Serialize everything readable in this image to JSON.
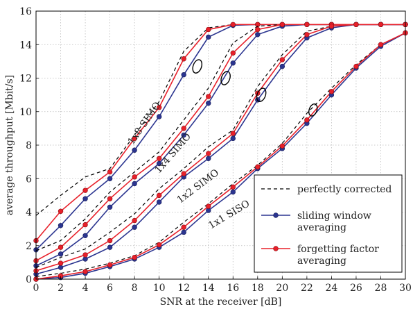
{
  "chart_data": {
    "type": "line",
    "title": "",
    "xlabel": "SNR at the receiver [dB]",
    "ylabel": "average throughput [Mbit/s]",
    "xlim": [
      0,
      30
    ],
    "ylim": [
      0,
      16
    ],
    "xticks": [
      0,
      2,
      4,
      6,
      8,
      10,
      12,
      14,
      16,
      18,
      20,
      22,
      24,
      26,
      28,
      30
    ],
    "yticks": [
      0,
      2,
      4,
      6,
      8,
      10,
      12,
      14,
      16
    ],
    "grid": true,
    "legend_position": "bottom-right",
    "legend": [
      {
        "label": "perfectly corrected",
        "style": "dashed",
        "color": "#000000",
        "marker": "none"
      },
      {
        "label": "sliding window averaging",
        "lines": [
          "sliding window",
          "averaging"
        ],
        "style": "solid",
        "color": "#2b3590",
        "marker": "circle"
      },
      {
        "label": "forgetting factor averaging",
        "lines": [
          "forgetting factor",
          "averaging"
        ],
        "style": "solid",
        "color": "#e8202a",
        "marker": "circle"
      }
    ],
    "x": [
      0,
      2,
      4,
      6,
      8,
      10,
      12,
      14,
      16,
      18,
      20,
      22,
      24,
      26,
      28,
      30
    ],
    "groups": [
      {
        "label": "1x8 SIMO",
        "perfect": [
          3.8,
          5.0,
          6.1,
          6.6,
          8.6,
          10.6,
          13.6,
          15.0,
          15.2,
          15.2,
          15.2,
          15.2,
          15.2,
          15.2,
          15.2,
          15.2
        ],
        "sliding": [
          1.75,
          3.2,
          4.8,
          6.0,
          7.7,
          9.7,
          12.2,
          14.45,
          15.15,
          15.2,
          15.2,
          15.2,
          15.2,
          15.2,
          15.2,
          15.2
        ],
        "forgetting": [
          2.3,
          4.05,
          5.3,
          6.4,
          8.4,
          10.25,
          13.15,
          14.9,
          15.2,
          15.2,
          15.2,
          15.2,
          15.2,
          15.2,
          15.2,
          15.2
        ]
      },
      {
        "label": "1x4 SIMO",
        "perfect": [
          1.7,
          2.3,
          3.6,
          5.2,
          6.4,
          7.6,
          9.5,
          11.4,
          14.1,
          15.1,
          15.2,
          15.2,
          15.2,
          15.2,
          15.2,
          15.2
        ],
        "sliding": [
          0.8,
          1.5,
          2.6,
          4.3,
          5.7,
          6.9,
          8.6,
          10.5,
          12.9,
          14.6,
          15.1,
          15.2,
          15.2,
          15.2,
          15.2,
          15.2
        ],
        "forgetting": [
          1.1,
          1.9,
          3.25,
          4.8,
          6.1,
          7.2,
          9.0,
          10.9,
          13.5,
          14.9,
          15.2,
          15.2,
          15.2,
          15.2,
          15.2,
          15.2
        ]
      },
      {
        "label": "1x2 SIMO",
        "perfect": [
          0.7,
          1.3,
          1.8,
          2.8,
          3.9,
          5.4,
          6.6,
          7.9,
          8.9,
          11.5,
          13.4,
          14.8,
          15.1,
          15.2,
          15.2,
          15.2
        ],
        "sliding": [
          0.3,
          0.7,
          1.2,
          1.9,
          3.1,
          4.6,
          6.1,
          7.2,
          8.4,
          10.7,
          12.7,
          14.4,
          15.0,
          15.2,
          15.2,
          15.2
        ],
        "forgetting": [
          0.5,
          0.95,
          1.45,
          2.3,
          3.5,
          5.0,
          6.3,
          7.5,
          8.7,
          11.1,
          13.1,
          14.6,
          15.1,
          15.2,
          15.2,
          15.2
        ]
      },
      {
        "label": "1x1 SISO",
        "perfect": [
          0.15,
          0.35,
          0.6,
          0.95,
          1.4,
          2.2,
          3.4,
          4.5,
          5.7,
          6.8,
          8.1,
          9.9,
          11.4,
          12.8,
          14.0,
          14.7
        ],
        "sliding": [
          0.0,
          0.1,
          0.35,
          0.75,
          1.2,
          1.9,
          2.8,
          4.1,
          5.2,
          6.6,
          7.8,
          9.3,
          11.0,
          12.6,
          13.9,
          14.7
        ],
        "forgetting": [
          0.0,
          0.2,
          0.45,
          0.85,
          1.3,
          2.05,
          3.1,
          4.35,
          5.5,
          6.7,
          7.95,
          9.5,
          11.2,
          12.7,
          14.0,
          14.7
        ]
      }
    ]
  }
}
